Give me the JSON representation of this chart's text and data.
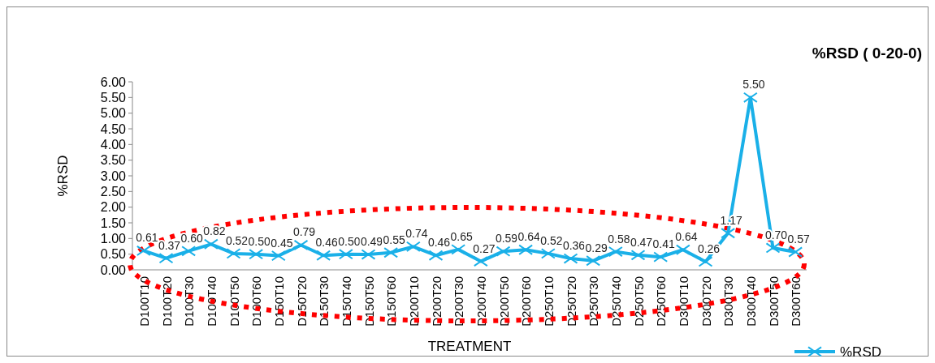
{
  "chart_data": {
    "type": "line",
    "title": "%RSD ( 0-20-0)",
    "xlabel": "TREATMENT",
    "ylabel": "%RSD",
    "categories": [
      "D100T10",
      "D100T20",
      "D100T30",
      "D100T40",
      "D100T50",
      "D100T60",
      "D150T10",
      "D150T20",
      "D150T30",
      "D150T40",
      "D150T50",
      "D150T60",
      "D200T10",
      "D200T20",
      "D200T30",
      "D200T40",
      "D200T50",
      "D200T60",
      "D250T10",
      "D250T20",
      "D250T30",
      "D250T40",
      "D250T50",
      "D250T60",
      "D300T10",
      "D300T20",
      "D300T30",
      "D300T40",
      "D300T50",
      "D300T60"
    ],
    "series": [
      {
        "name": "%RSD",
        "color": "#1ab0e8",
        "values": [
          0.61,
          0.37,
          0.6,
          0.82,
          0.52,
          0.5,
          0.45,
          0.79,
          0.46,
          0.5,
          0.49,
          0.55,
          0.74,
          0.46,
          0.65,
          0.27,
          0.59,
          0.64,
          0.52,
          0.36,
          0.29,
          0.58,
          0.47,
          0.41,
          0.64,
          0.26,
          1.17,
          5.5,
          0.7,
          0.57
        ],
        "value_labels": [
          "0.61",
          "0.37",
          "0.60",
          "0.82",
          "0.52",
          "0.50",
          "0.45",
          "0.79",
          "0.46",
          "0.50",
          "0.49",
          "0.55",
          "0.74",
          "0.46",
          "0.65",
          "0.27",
          "0.59",
          "0.64",
          "0.52",
          "0.36",
          "0.29",
          "0.58",
          "0.47",
          "0.41",
          "0.64",
          "0.26",
          "1.17",
          "5.50",
          "0.70",
          "0.57"
        ]
      }
    ],
    "ylim": [
      0,
      6
    ],
    "yticks": [
      {
        "value": 0,
        "label": "0.00"
      },
      {
        "value": 0.5,
        "label": "0.50"
      },
      {
        "value": 1,
        "label": "1.00"
      },
      {
        "value": 1.5,
        "label": "1.50"
      },
      {
        "value": 2,
        "label": "2.00"
      },
      {
        "value": 2.5,
        "label": "2.50"
      },
      {
        "value": 3,
        "label": "3.00"
      },
      {
        "value": 3.5,
        "label": "3.50"
      },
      {
        "value": 4,
        "label": "4.00"
      },
      {
        "value": 4.5,
        "label": "4.50"
      },
      {
        "value": 5,
        "label": "5.00"
      },
      {
        "value": 5.5,
        "label": "5.50"
      },
      {
        "value": 6,
        "label": "6.00"
      }
    ],
    "grid": false,
    "legend": "bottom right",
    "marker": "cross",
    "line_style": "solid"
  }
}
